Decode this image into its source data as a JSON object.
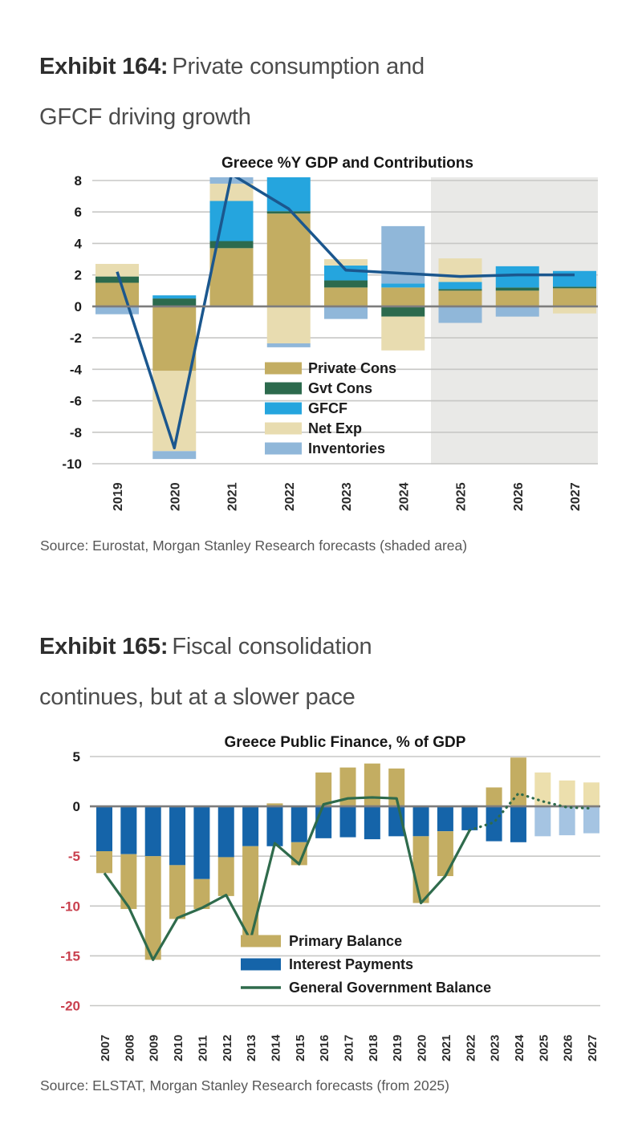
{
  "exhibits": [
    {
      "label": "Exhibit 164:",
      "title_line1": "Private consumption and",
      "title_line2": "GFCF driving growth",
      "source": "Source: Eurostat, Morgan Stanley Research forecasts (shaded area)"
    },
    {
      "label": "Exhibit 165:",
      "title_line1": "Fiscal consolidation",
      "title_line2": "continues, but at a slower pace",
      "source": "Source: ELSTAT, Morgan Stanley Research forecasts (from 2025)"
    }
  ],
  "chart_data": [
    {
      "type": "bar",
      "subtype": "stacked contribution bars with line overlay",
      "title": "Greece %Y GDP and Contributions",
      "categories": [
        "2019",
        "2020",
        "2021",
        "2022",
        "2023",
        "2024",
        "2025",
        "2026",
        "2027"
      ],
      "series": [
        {
          "name": "Private Cons",
          "color": "#c3ad62",
          "values": [
            1.5,
            -4.1,
            3.7,
            5.9,
            1.2,
            1.2,
            1.0,
            1.0,
            1.15
          ]
        },
        {
          "name": "Gvt Cons",
          "color": "#2c6a4d",
          "values": [
            0.4,
            0.5,
            0.45,
            0.15,
            0.45,
            -0.65,
            0.1,
            0.2,
            0.1
          ]
        },
        {
          "name": "GFCF",
          "color": "#25a5de",
          "values": [
            0.0,
            0.2,
            2.55,
            2.45,
            0.95,
            0.25,
            0.45,
            1.35,
            1.0
          ]
        },
        {
          "name": "Net Exp",
          "color": "#e8dcb0",
          "values": [
            0.8,
            -5.1,
            1.1,
            -2.35,
            0.4,
            -2.15,
            1.5,
            0.0,
            -0.45
          ]
        },
        {
          "name": "Inventories",
          "color": "#90b7d9",
          "values": [
            -0.5,
            -0.5,
            0.5,
            -0.25,
            -0.8,
            3.65,
            -1.05,
            -0.65,
            0.0
          ]
        }
      ],
      "line_series": {
        "name": "%Y GDP",
        "color": "#1b578e",
        "values": [
          2.2,
          -9.0,
          8.4,
          6.2,
          2.3,
          2.1,
          1.9,
          2.0,
          2.0
        ]
      },
      "ylim": [
        -10,
        8
      ],
      "yticks": [
        8,
        6,
        4,
        2,
        0,
        -2,
        -4,
        -6,
        -8,
        -10
      ],
      "grid": true,
      "legend_position": "center",
      "forecast_from": "2025",
      "forecast_style": "shaded area",
      "shade_color": "#e9e9e7"
    },
    {
      "type": "bar",
      "subtype": "stacked bars with line overlay",
      "title": "Greece Public Finance, % of GDP",
      "categories": [
        "2007",
        "2008",
        "2009",
        "2010",
        "2011",
        "2012",
        "2013",
        "2014",
        "2015",
        "2016",
        "2017",
        "2018",
        "2019",
        "2020",
        "2021",
        "2022",
        "2023",
        "2024",
        "2025",
        "2026",
        "2027"
      ],
      "series": [
        {
          "name": "Primary Balance",
          "color": "#c3ad62",
          "forecast_color": "#ecdfad",
          "values": [
            -2.2,
            -5.5,
            -10.4,
            -5.4,
            -3.0,
            -3.9,
            -9.4,
            0.3,
            -2.3,
            3.4,
            3.9,
            4.3,
            3.8,
            -6.7,
            -4.5,
            0.1,
            1.9,
            4.9,
            3.4,
            2.6,
            2.4
          ]
        },
        {
          "name": "Interest Payments",
          "color": "#1564a9",
          "forecast_color": "#a5c4e2",
          "values": [
            -4.5,
            -4.8,
            -5.0,
            -5.9,
            -7.3,
            -5.1,
            -4.0,
            -4.0,
            -3.6,
            -3.2,
            -3.1,
            -3.3,
            -3.0,
            -3.0,
            -2.5,
            -2.4,
            -3.5,
            -3.6,
            -3.0,
            -2.9,
            -2.7
          ]
        }
      ],
      "stack_order": [
        1,
        0
      ],
      "line_series": {
        "name": "General Government Balance",
        "color": "#2f6b4c",
        "values": [
          -6.7,
          -10.1,
          -15.4,
          -11.2,
          -10.2,
          -8.9,
          -13.4,
          -3.7,
          -5.8,
          0.2,
          0.8,
          0.9,
          0.8,
          -9.7,
          -7.0,
          -2.4,
          -1.6,
          1.3,
          0.5,
          -0.1,
          -0.2
        ],
        "dotted_from": "2022"
      },
      "ylim": [
        -20,
        5
      ],
      "yticks": [
        5,
        0,
        -5,
        -10,
        -15,
        -20
      ],
      "ytick_negative_color": "#c9404e",
      "grid": true,
      "legend_position": "bottom-right",
      "forecast_from": "2025",
      "forecast_style": "lighter bars and dotted line"
    }
  ]
}
